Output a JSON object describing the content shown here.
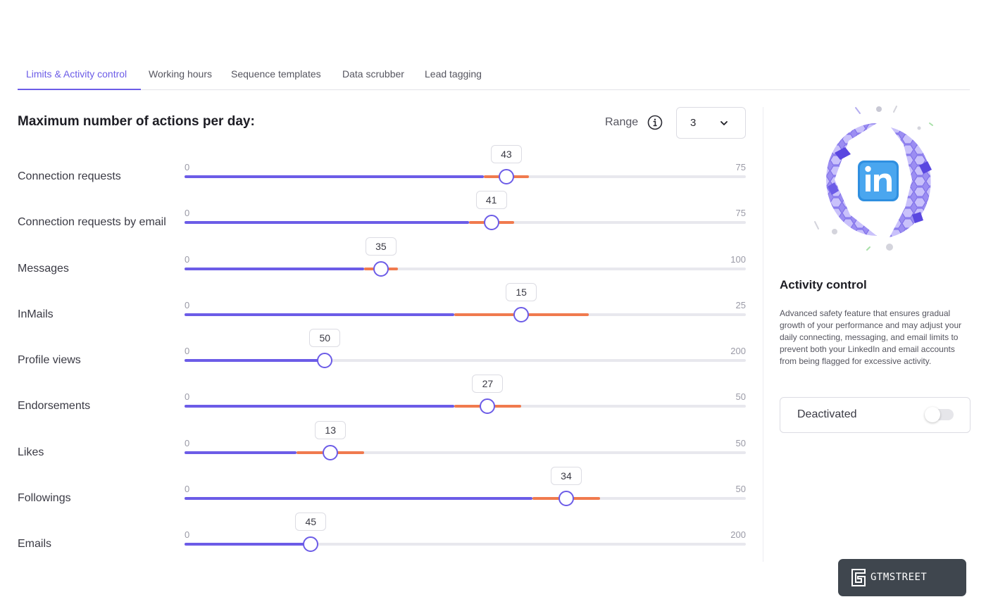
{
  "tabs": [
    {
      "label": "Limits & Activity control",
      "active": true
    },
    {
      "label": "Working hours",
      "active": false
    },
    {
      "label": "Sequence templates",
      "active": false
    },
    {
      "label": "Data scrubber",
      "active": false
    },
    {
      "label": "Lead tagging",
      "active": false
    }
  ],
  "main": {
    "title": "Maximum number of actions per day:",
    "range_label": "Range",
    "range_value": "3",
    "info_icon": "info-circle-icon",
    "dropdown_icon": "chevron-down-icon"
  },
  "sliders": [
    {
      "label": "Connection requests",
      "min": "0",
      "max": "75",
      "value": "43",
      "value_num": 43,
      "max_num": 75,
      "range": 3
    },
    {
      "label": "Connection requests by email",
      "min": "0",
      "max": "75",
      "value": "41",
      "value_num": 41,
      "max_num": 75,
      "range": 3
    },
    {
      "label": "Messages",
      "min": "0",
      "max": "100",
      "value": "35",
      "value_num": 35,
      "max_num": 100,
      "range": 3
    },
    {
      "label": "InMails",
      "min": "0",
      "max": "25",
      "value": "15",
      "value_num": 15,
      "max_num": 25,
      "range": 3
    },
    {
      "label": "Profile views",
      "min": "0",
      "max": "200",
      "value": "50",
      "value_num": 50,
      "max_num": 200,
      "range": 0
    },
    {
      "label": "Endorsements",
      "min": "0",
      "max": "50",
      "value": "27",
      "value_num": 27,
      "max_num": 50,
      "range": 3
    },
    {
      "label": "Likes",
      "min": "0",
      "max": "50",
      "value": "13",
      "value_num": 13,
      "max_num": 50,
      "range": 3
    },
    {
      "label": "Followings",
      "min": "0",
      "max": "50",
      "value": "34",
      "value_num": 34,
      "max_num": 50,
      "range": 3
    },
    {
      "label": "Emails",
      "min": "0",
      "max": "200",
      "value": "45",
      "value_num": 45,
      "max_num": 200,
      "range": 0
    }
  ],
  "panel": {
    "illustration": "linkedin-globe-illustration",
    "title": "Activity control",
    "description": "Advanced safety feature that ensures gradual growth of your performance and may adjust your daily connecting, messaging, and email limits to prevent both your LinkedIn and email accounts from being flagged for excessive activity.",
    "toggle_label": "Deactivated",
    "toggle_on": false
  },
  "watermark": {
    "text": "GTMSTREET",
    "icon": "gtmstreet-logo-icon"
  },
  "colors": {
    "accent": "#6c5ce7",
    "range": "#f07a4e",
    "track": "#e8e8ee"
  }
}
